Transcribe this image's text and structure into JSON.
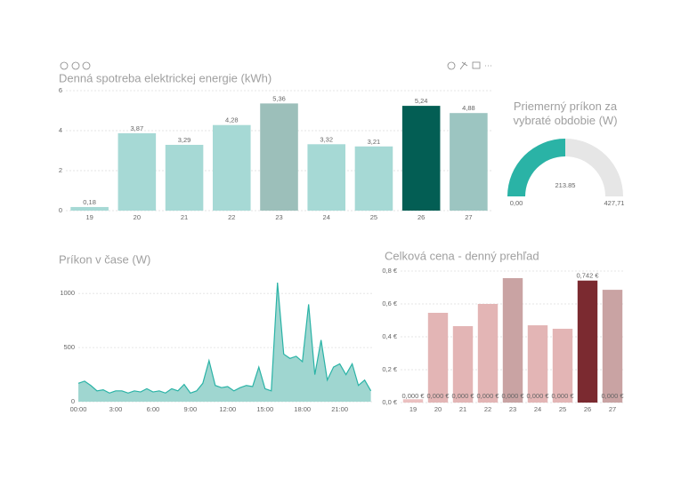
{
  "chart_data": [
    {
      "type": "bar",
      "title": "Denná spotreba elektrickej energie (kWh)",
      "categories": [
        "19",
        "20",
        "21",
        "22",
        "23",
        "24",
        "25",
        "26",
        "27"
      ],
      "values": [
        0.18,
        3.87,
        3.29,
        4.28,
        5.36,
        3.32,
        3.21,
        5.24,
        4.88
      ],
      "value_labels": [
        "0,18",
        "3,87",
        "3,29",
        "4,28",
        "5,36",
        "3,32",
        "3,21",
        "5,24",
        "4,88"
      ],
      "colors": [
        "#a6d9d5",
        "#a6d9d5",
        "#a6d9d5",
        "#a6d9d5",
        "#9cbfba",
        "#a6d9d5",
        "#a6d9d5",
        "#035e54",
        "#9cc5c1"
      ],
      "ylim": [
        0,
        6
      ],
      "yticks": [
        0,
        2,
        4,
        6
      ],
      "grid": true
    },
    {
      "type": "gauge",
      "title": "Priemerný príkon za vybraté obdobie (W)",
      "value": 213.85,
      "min": {
        "value": 0,
        "label": "0,00"
      },
      "max": {
        "value": 427.71,
        "label": "427,71"
      },
      "color": "#2ab3a6",
      "track_color": "#e6e6e6"
    },
    {
      "type": "area",
      "title": "Príkon v čase (W)",
      "x": [
        0,
        0.5,
        1,
        1.5,
        2,
        2.5,
        3,
        3.5,
        4,
        4.5,
        5,
        5.5,
        6,
        6.5,
        7,
        7.5,
        8,
        8.5,
        9,
        9.5,
        10,
        10.5,
        11,
        11.5,
        12,
        12.5,
        13,
        13.5,
        14,
        14.5,
        15,
        15.5,
        16,
        16.5,
        17,
        17.5,
        18,
        18.5,
        19,
        19.5,
        20,
        20.5,
        21,
        21.5,
        22,
        22.5,
        23,
        23.5
      ],
      "values": [
        170,
        190,
        150,
        100,
        110,
        80,
        100,
        100,
        80,
        100,
        90,
        120,
        90,
        100,
        80,
        120,
        100,
        160,
        80,
        100,
        170,
        380,
        150,
        130,
        140,
        100,
        130,
        150,
        140,
        320,
        120,
        100,
        1100,
        440,
        400,
        420,
        370,
        900,
        250,
        570,
        200,
        320,
        350,
        250,
        350,
        150,
        200,
        100
      ],
      "color": "#2ab3a6",
      "fill_color": "#9fd6d0",
      "xlim": [
        0,
        23.6
      ],
      "xticks": [
        {
          "value": 0,
          "label": "00:00"
        },
        {
          "value": 3,
          "label": "3:00"
        },
        {
          "value": 6,
          "label": "6:00"
        },
        {
          "value": 9,
          "label": "9:00"
        },
        {
          "value": 12,
          "label": "12:00"
        },
        {
          "value": 15,
          "label": "15:00"
        },
        {
          "value": 18,
          "label": "18:00"
        },
        {
          "value": 21,
          "label": "21:00"
        }
      ],
      "ylim": [
        0,
        1150
      ],
      "yticks": [
        0,
        500,
        1000
      ],
      "grid": true
    },
    {
      "type": "bar",
      "title": "Celková cena - denný prehľad",
      "categories": [
        "19",
        "20",
        "21",
        "22",
        "23",
        "24",
        "25",
        "26",
        "27"
      ],
      "values": [
        0.02,
        0.546,
        0.465,
        0.6,
        0.757,
        0.47,
        0.449,
        0.742,
        0.686
      ],
      "value_labels": [
        null,
        null,
        null,
        null,
        null,
        null,
        null,
        "0,742 €",
        null
      ],
      "bottom_labels": [
        "0,000 €",
        "0,000 €",
        "0,000 €",
        "0,000 €",
        "0,000 €",
        "0,000 €",
        "0,000 €",
        null,
        "0,000 €"
      ],
      "colors": [
        "#ebc0c0",
        "#e3b5b5",
        "#e3b5b5",
        "#e3b5b5",
        "#c9a3a3",
        "#e3b5b5",
        "#e3b5b5",
        "#7b2a30",
        "#c9a3a3"
      ],
      "ylim": [
        0,
        0.8
      ],
      "yticks": [
        {
          "value": 0,
          "label": "0,0 €"
        },
        {
          "value": 0.2,
          "label": "0,2 €"
        },
        {
          "value": 0.4,
          "label": "0,4 €"
        },
        {
          "value": 0.6,
          "label": "0,6 €"
        },
        {
          "value": 0.8,
          "label": "0,8 €"
        }
      ],
      "grid": true
    }
  ]
}
